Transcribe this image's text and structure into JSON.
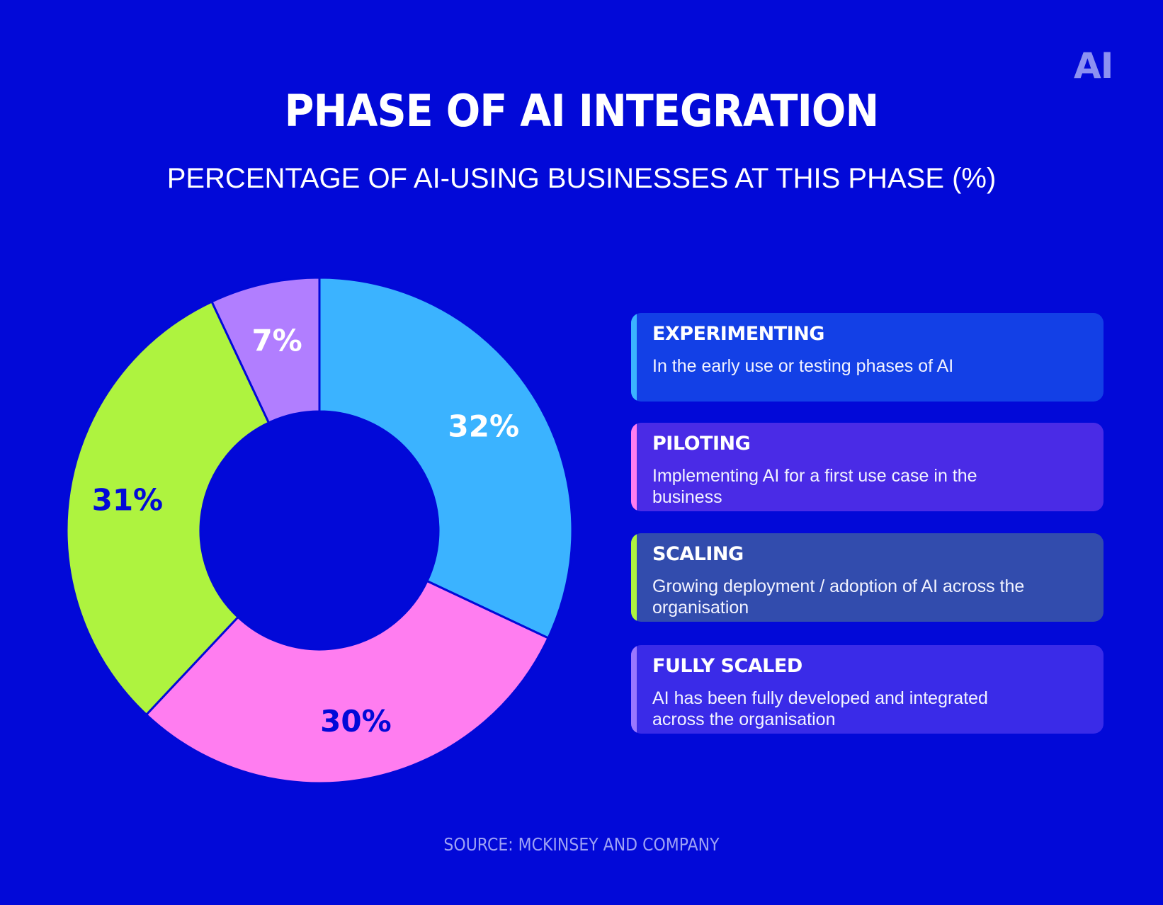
{
  "logo": "AI",
  "chart_data": {
    "type": "pie",
    "title": "PHASE OF AI INTEGRATION",
    "subtitle": "PERCENTAGE OF AI-USING BUSINESSES AT THIS PHASE (%)",
    "donut": true,
    "slices": [
      {
        "label": "EXPERIMENTING",
        "value": 32,
        "display": "32%",
        "color": "#3BB3FF",
        "label_color": "#FFFFFF"
      },
      {
        "label": "PILOTING",
        "value": 30,
        "display": "30%",
        "color": "#FF7DF0",
        "label_color": "#0209D8"
      },
      {
        "label": "SCALING",
        "value": 31,
        "display": "31%",
        "color": "#AEF33F",
        "label_color": "#0209D8"
      },
      {
        "label": "FULLY SCALED",
        "value": 7,
        "display": "7%",
        "color": "#B17EFF",
        "label_color": "#FFFFFF"
      }
    ]
  },
  "legend": [
    {
      "title": "EXPERIMENTING",
      "desc": "In the early use or testing phases of AI",
      "bg": "#1340E6",
      "accent": "#3BB3FF"
    },
    {
      "title": "PILOTING",
      "desc": "Implementing AI for a first use case in the business",
      "bg": "#4A2BE6",
      "accent": "#FF7DF0"
    },
    {
      "title": "SCALING",
      "desc": "Growing deployment / adoption of AI across the organisation",
      "bg": "#324CAD",
      "accent": "#AEF33F"
    },
    {
      "title": "FULLY SCALED",
      "desc": "AI has been fully developed and integrated across the organisation",
      "bg": "#3A2BE8",
      "accent": "#9A77FF"
    }
  ],
  "source": "SOURCE: MCKINSEY AND COMPANY"
}
